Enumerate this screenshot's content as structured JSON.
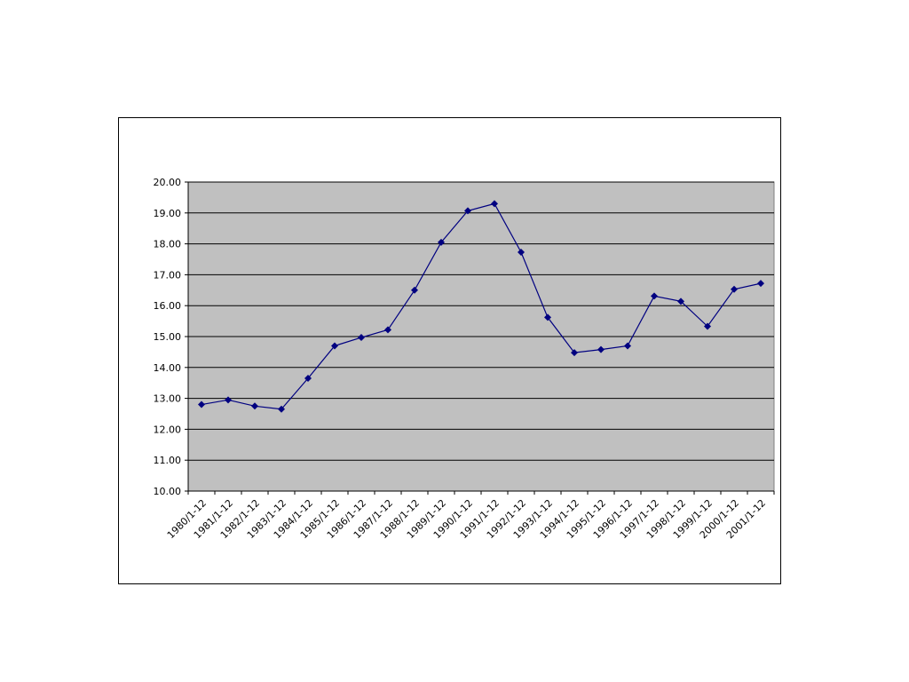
{
  "slide": {
    "title": "",
    "caption": ""
  },
  "chart_data": {
    "type": "line",
    "title": "",
    "xlabel": "",
    "ylabel": "",
    "ylim": [
      10,
      20
    ],
    "grid": true,
    "yticks": [
      "10.00",
      "11.00",
      "12.00",
      "13.00",
      "14.00",
      "15.00",
      "16.00",
      "17.00",
      "18.00",
      "19.00",
      "20.00"
    ],
    "categories": [
      "1980/1-12",
      "1981/1-12",
      "1982/1-12",
      "1983/1-12",
      "1984/1-12",
      "1985/1-12",
      "1986/1-12",
      "1987/1-12",
      "1988/1-12",
      "1989/1-12",
      "1990/1-12",
      "1991/1-12",
      "1992/1-12",
      "1993/1-12",
      "1994/1-12",
      "1995/1-12",
      "1996/1-12",
      "1997/1-12",
      "1998/1-12",
      "1999/1-12",
      "2000/1-12",
      "2001/1-12"
    ],
    "series": [
      {
        "values": [
          12.8,
          12.95,
          12.75,
          12.65,
          13.65,
          14.7,
          14.97,
          15.22,
          16.5,
          18.05,
          19.07,
          19.3,
          17.73,
          15.62,
          14.48,
          14.58,
          14.7,
          16.31,
          16.14,
          15.33,
          16.53,
          16.72
        ]
      }
    ],
    "colors": {
      "plot_background": "#c0c0c0",
      "line": "#000080",
      "marker": "#000080",
      "gridline": "#000000"
    },
    "marker": "diamond"
  }
}
